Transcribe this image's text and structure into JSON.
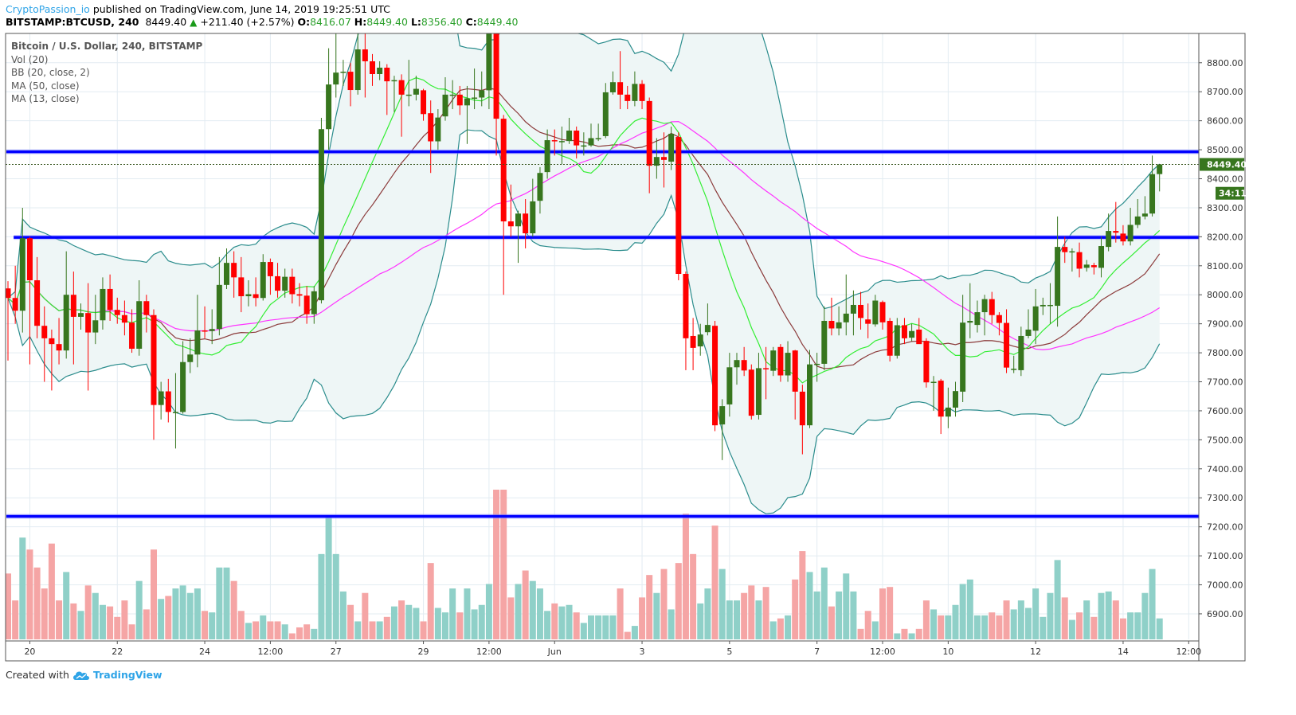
{
  "header": {
    "author": "CryptoPassion_io",
    "published": "published on TradingView.com, June 14, 2019 19:25:51 UTC",
    "symbol": "BITSTAMP:BTCUSD, 240",
    "last": "8449.40",
    "change": "+211.40 (+2.57%)",
    "o_label": "O:",
    "o": "8416.07",
    "h_label": "H:",
    "h": "8449.40",
    "l_label": "L:",
    "l": "8356.40",
    "c_label": "C:",
    "c": "8449.40",
    "up_icon": "triangle-up-icon"
  },
  "legend": {
    "title": "Bitcoin / U.S. Dollar, 240, BITSTAMP",
    "items": [
      "Vol (20)",
      "BB (20, close, 2)",
      "MA (50, close)",
      "MA (13, close)"
    ]
  },
  "footer": {
    "created_with": "Created with",
    "brand": "TradingView",
    "logo_icon": "tradingview-cloud-icon"
  },
  "colors": {
    "up": "#37761e",
    "down": "#ff0000",
    "vol_up": "#8fd0c8",
    "vol_down": "#f5a5a5",
    "ma13": "#33ee33",
    "ma50": "#ff33ff",
    "bb_basis": "#8b3a3a",
    "bb_band": "#2a8c8c",
    "bb_fill": "#eef6f6",
    "hline": "#0000ff",
    "grid": "#e3ecf2",
    "price_label": "#37761e"
  },
  "chart_data": {
    "type": "candlestick",
    "timeframe": "240",
    "ylim": [
      6812,
      8901
    ],
    "y_ticks": [
      6900,
      7000,
      7100,
      7200,
      7300,
      7400,
      7500,
      7600,
      7700,
      7800,
      7900,
      8000,
      8100,
      8200,
      8300,
      8400,
      8500,
      8600,
      8700,
      8800
    ],
    "x_ticks": [
      {
        "label": "20",
        "bar": 3
      },
      {
        "label": "22",
        "bar": 15
      },
      {
        "label": "24",
        "bar": 27
      },
      {
        "label": "12:00",
        "bar": 36
      },
      {
        "label": "27",
        "bar": 45
      },
      {
        "label": "29",
        "bar": 57
      },
      {
        "label": "12:00",
        "bar": 66
      },
      {
        "label": "Jun",
        "bar": 75
      },
      {
        "label": "3",
        "bar": 87
      },
      {
        "label": "5",
        "bar": 99
      },
      {
        "label": "7",
        "bar": 111
      },
      {
        "label": "12:00",
        "bar": 120
      },
      {
        "label": "10",
        "bar": 129
      },
      {
        "label": "12",
        "bar": 141
      },
      {
        "label": "14",
        "bar": 153
      },
      {
        "label": "12:00",
        "bar": 162
      }
    ],
    "horizontal_lines": [
      {
        "price": 8493,
        "from_bar": 0
      },
      {
        "price": 8198,
        "from_bar": 1
      },
      {
        "price": 7236,
        "from_bar": 0
      }
    ],
    "last_price": {
      "value": "8449.40",
      "countdown": "34:11"
    },
    "ohlc": [
      [
        8022,
        8047,
        7773,
        7989
      ],
      [
        7989,
        8100,
        7900,
        7945
      ],
      [
        7945,
        8300,
        7870,
        8195
      ],
      [
        8195,
        8200,
        7760,
        8050
      ],
      [
        8050,
        8130,
        7850,
        7893
      ],
      [
        7893,
        7960,
        7700,
        7850
      ],
      [
        7850,
        7880,
        7670,
        7830
      ],
      [
        7830,
        7920,
        7760,
        7808
      ],
      [
        7808,
        8150,
        7780,
        8000
      ],
      [
        8000,
        8080,
        7760,
        7924
      ],
      [
        7924,
        7970,
        7880,
        7937
      ],
      [
        7937,
        8040,
        7670,
        7870
      ],
      [
        7870,
        8000,
        7830,
        7912
      ],
      [
        7912,
        8060,
        7880,
        8020
      ],
      [
        8020,
        8070,
        7910,
        7948
      ],
      [
        7948,
        7990,
        7900,
        7930
      ],
      [
        7930,
        7980,
        7860,
        7904
      ],
      [
        7904,
        7950,
        7800,
        7814
      ],
      [
        7814,
        8050,
        7790,
        7978
      ],
      [
        7978,
        8000,
        7870,
        7930
      ],
      [
        7930,
        7950,
        7500,
        7620
      ],
      [
        7620,
        7700,
        7570,
        7667
      ],
      [
        7667,
        7710,
        7560,
        7596
      ],
      [
        7596,
        7730,
        7470,
        7596
      ],
      [
        7596,
        7840,
        7590,
        7768
      ],
      [
        7768,
        7850,
        7730,
        7794
      ],
      [
        7794,
        8000,
        7750,
        7877
      ],
      [
        7877,
        7960,
        7850,
        7875
      ],
      [
        7875,
        7950,
        7830,
        7882
      ],
      [
        7882,
        8130,
        7860,
        8034
      ],
      [
        8034,
        8160,
        8020,
        8110
      ],
      [
        8110,
        8150,
        7990,
        8060
      ],
      [
        8060,
        8130,
        7940,
        7995
      ],
      [
        7995,
        8050,
        7960,
        8002
      ],
      [
        8002,
        8060,
        7960,
        7989
      ],
      [
        7989,
        8140,
        7980,
        8113
      ],
      [
        8113,
        8125,
        8000,
        8064
      ],
      [
        8064,
        8110,
        7990,
        8014
      ],
      [
        8014,
        8090,
        7990,
        8062
      ],
      [
        8062,
        8090,
        7970,
        8002
      ],
      [
        8002,
        8040,
        7960,
        7997
      ],
      [
        7997,
        8030,
        7900,
        7933
      ],
      [
        7933,
        8030,
        7900,
        8012
      ],
      [
        7981,
        8610,
        7970,
        8571
      ],
      [
        8571,
        8850,
        8500,
        8725
      ],
      [
        8725,
        8930,
        8680,
        8766
      ],
      [
        8769,
        8810,
        8720,
        8769
      ],
      [
        8769,
        8800,
        8650,
        8706
      ],
      [
        8706,
        8930,
        8690,
        8846
      ],
      [
        8846,
        8930,
        8680,
        8805
      ],
      [
        8805,
        8830,
        8720,
        8761
      ],
      [
        8761,
        8805,
        8740,
        8783
      ],
      [
        8783,
        8795,
        8620,
        8736
      ],
      [
        8736,
        8755,
        8630,
        8740
      ],
      [
        8740,
        8760,
        8545,
        8690
      ],
      [
        8690,
        8810,
        8650,
        8690
      ],
      [
        8690,
        8755,
        8670,
        8710
      ],
      [
        8705,
        8710,
        8600,
        8623
      ],
      [
        8626,
        8670,
        8420,
        8529
      ],
      [
        8529,
        8640,
        8500,
        8611
      ],
      [
        8615,
        8750,
        8600,
        8690
      ],
      [
        8690,
        8740,
        8640,
        8690
      ],
      [
        8690,
        8720,
        8620,
        8653
      ],
      [
        8653,
        8720,
        8520,
        8677
      ],
      [
        8677,
        8780,
        8640,
        8680
      ],
      [
        8680,
        8770,
        8650,
        8705
      ],
      [
        8705,
        8990,
        8640,
        8920
      ],
      [
        8920,
        8980,
        8480,
        8607
      ],
      [
        8607,
        8620,
        8000,
        8253
      ],
      [
        8253,
        8380,
        8200,
        8236
      ],
      [
        8236,
        8290,
        8110,
        8280
      ],
      [
        8280,
        8330,
        8160,
        8212
      ],
      [
        8212,
        8400,
        8200,
        8322
      ],
      [
        8324,
        8440,
        8280,
        8420
      ],
      [
        8423,
        8570,
        8400,
        8533
      ],
      [
        8533,
        8570,
        8480,
        8530
      ],
      [
        8530,
        8580,
        8450,
        8530
      ],
      [
        8530,
        8610,
        8520,
        8566
      ],
      [
        8566,
        8580,
        8470,
        8515
      ],
      [
        8515,
        8560,
        8480,
        8515
      ],
      [
        8515,
        8590,
        8510,
        8540
      ],
      [
        8540,
        8590,
        8530,
        8540
      ],
      [
        8547,
        8730,
        8540,
        8698
      ],
      [
        8698,
        8770,
        8690,
        8733
      ],
      [
        8733,
        8840,
        8640,
        8690
      ],
      [
        8690,
        8720,
        8640,
        8668
      ],
      [
        8668,
        8770,
        8650,
        8727
      ],
      [
        8727,
        8740,
        8640,
        8668
      ],
      [
        8668,
        8680,
        8350,
        8445
      ],
      [
        8445,
        8540,
        8400,
        8475
      ],
      [
        8475,
        8560,
        8370,
        8465
      ],
      [
        8459,
        8580,
        8430,
        8555
      ],
      [
        8544,
        8560,
        8050,
        8072
      ],
      [
        8072,
        8080,
        7740,
        7850
      ],
      [
        7858,
        7920,
        7740,
        7817
      ],
      [
        7822,
        7900,
        7790,
        7863
      ],
      [
        7871,
        7970,
        7860,
        7896
      ],
      [
        7893,
        7910,
        7530,
        7550
      ],
      [
        7553,
        7640,
        7430,
        7616
      ],
      [
        7622,
        7800,
        7580,
        7750
      ],
      [
        7750,
        7800,
        7690,
        7775
      ],
      [
        7775,
        7820,
        7720,
        7739
      ],
      [
        7742,
        7760,
        7570,
        7583
      ],
      [
        7586,
        7800,
        7570,
        7747
      ],
      [
        7747,
        7820,
        7640,
        7745
      ],
      [
        7738,
        7820,
        7720,
        7808
      ],
      [
        7820,
        7830,
        7700,
        7722
      ],
      [
        7722,
        7840,
        7700,
        7800
      ],
      [
        7808,
        7810,
        7570,
        7666
      ],
      [
        7666,
        7690,
        7450,
        7550
      ],
      [
        7550,
        7810,
        7540,
        7760
      ],
      [
        7760,
        7800,
        7700,
        7762
      ],
      [
        7762,
        7960,
        7740,
        7910
      ],
      [
        7910,
        7990,
        7860,
        7884
      ],
      [
        7884,
        7960,
        7860,
        7905
      ],
      [
        7905,
        8070,
        7860,
        7935
      ],
      [
        7935,
        8015,
        7860,
        7965
      ],
      [
        7965,
        8010,
        7880,
        7920
      ],
      [
        7915,
        7970,
        7850,
        7900
      ],
      [
        7898,
        8000,
        7890,
        7980
      ],
      [
        7975,
        7980,
        7880,
        7905
      ],
      [
        7910,
        7920,
        7770,
        7790
      ],
      [
        7790,
        7920,
        7780,
        7895
      ],
      [
        7895,
        7920,
        7830,
        7850
      ],
      [
        7852,
        7900,
        7840,
        7875
      ],
      [
        7880,
        7920,
        7840,
        7830
      ],
      [
        7841,
        7850,
        7680,
        7698
      ],
      [
        7700,
        7720,
        7600,
        7700
      ],
      [
        7704,
        7710,
        7520,
        7580
      ],
      [
        7580,
        7680,
        7540,
        7611
      ],
      [
        7611,
        7700,
        7580,
        7668
      ],
      [
        7666,
        8000,
        7630,
        7904
      ],
      [
        7904,
        8040,
        7850,
        7910
      ],
      [
        7896,
        7980,
        7870,
        7940
      ],
      [
        7940,
        8000,
        7860,
        7985
      ],
      [
        7985,
        8010,
        7900,
        7930
      ],
      [
        7930,
        7940,
        7860,
        7903
      ],
      [
        7903,
        7950,
        7730,
        7749
      ],
      [
        7745,
        7790,
        7730,
        7745
      ],
      [
        7740,
        7890,
        7720,
        7858
      ],
      [
        7858,
        7950,
        7850,
        7880
      ],
      [
        7876,
        8020,
        7830,
        7960
      ],
      [
        7960,
        7990,
        7930,
        7965
      ],
      [
        7965,
        8040,
        7900,
        7965
      ],
      [
        7962,
        8270,
        7890,
        8165
      ],
      [
        8165,
        8200,
        8110,
        8147
      ],
      [
        8150,
        8160,
        8080,
        8150
      ],
      [
        8147,
        8180,
        8060,
        8090
      ],
      [
        8093,
        8120,
        8080,
        8104
      ],
      [
        8102,
        8110,
        8070,
        8095
      ],
      [
        8093,
        8200,
        8060,
        8168
      ],
      [
        8165,
        8280,
        8150,
        8220
      ],
      [
        8220,
        8320,
        8180,
        8214
      ],
      [
        8211,
        8240,
        8170,
        8184
      ],
      [
        8184,
        8300,
        8170,
        8241
      ],
      [
        8241,
        8330,
        8230,
        8270
      ],
      [
        8270,
        8340,
        8260,
        8280
      ],
      [
        8280,
        8480,
        8270,
        8416.07
      ],
      [
        8416.07,
        8449.4,
        8356.4,
        8449.4
      ]
    ],
    "volume_relative_percent": [
      44,
      26,
      68,
      60,
      48,
      34,
      64,
      26,
      45,
      24,
      19,
      36,
      31,
      23,
      22,
      15,
      26,
      10,
      39,
      20,
      60,
      27,
      29,
      34,
      36,
      31,
      34,
      19,
      18,
      48,
      48,
      39,
      19,
      11,
      12,
      16,
      12,
      12,
      10,
      4,
      8,
      10,
      7,
      57,
      82,
      57,
      32,
      23,
      12,
      31,
      12,
      12,
      15,
      22,
      26,
      23,
      21,
      12,
      51,
      21,
      18,
      34,
      18,
      34,
      20,
      23,
      37,
      100,
      100,
      28,
      37,
      46,
      39,
      34,
      19,
      24,
      22,
      23,
      18,
      11,
      16,
      16,
      16,
      16,
      34,
      5,
      9,
      28,
      43,
      31,
      47,
      20,
      51,
      84,
      57,
      24,
      34,
      76,
      47,
      26,
      26,
      31,
      36,
      26,
      35,
      12,
      14,
      16,
      40,
      59,
      45,
      32,
      48,
      22,
      32,
      44,
      32,
      7,
      19,
      12,
      34,
      35,
      4,
      7,
      4,
      7,
      26,
      20,
      16,
      16,
      23,
      37,
      40,
      16,
      16,
      18,
      16,
      26,
      20,
      26,
      21,
      34,
      15,
      31,
      53,
      28,
      13,
      18,
      26,
      15,
      31,
      32,
      26,
      14,
      18,
      18,
      31,
      47,
      14
    ],
    "indicators": {
      "ma_fast": 13,
      "ma_slow": 50,
      "bb_length": 20,
      "bb_mult": 2
    }
  }
}
